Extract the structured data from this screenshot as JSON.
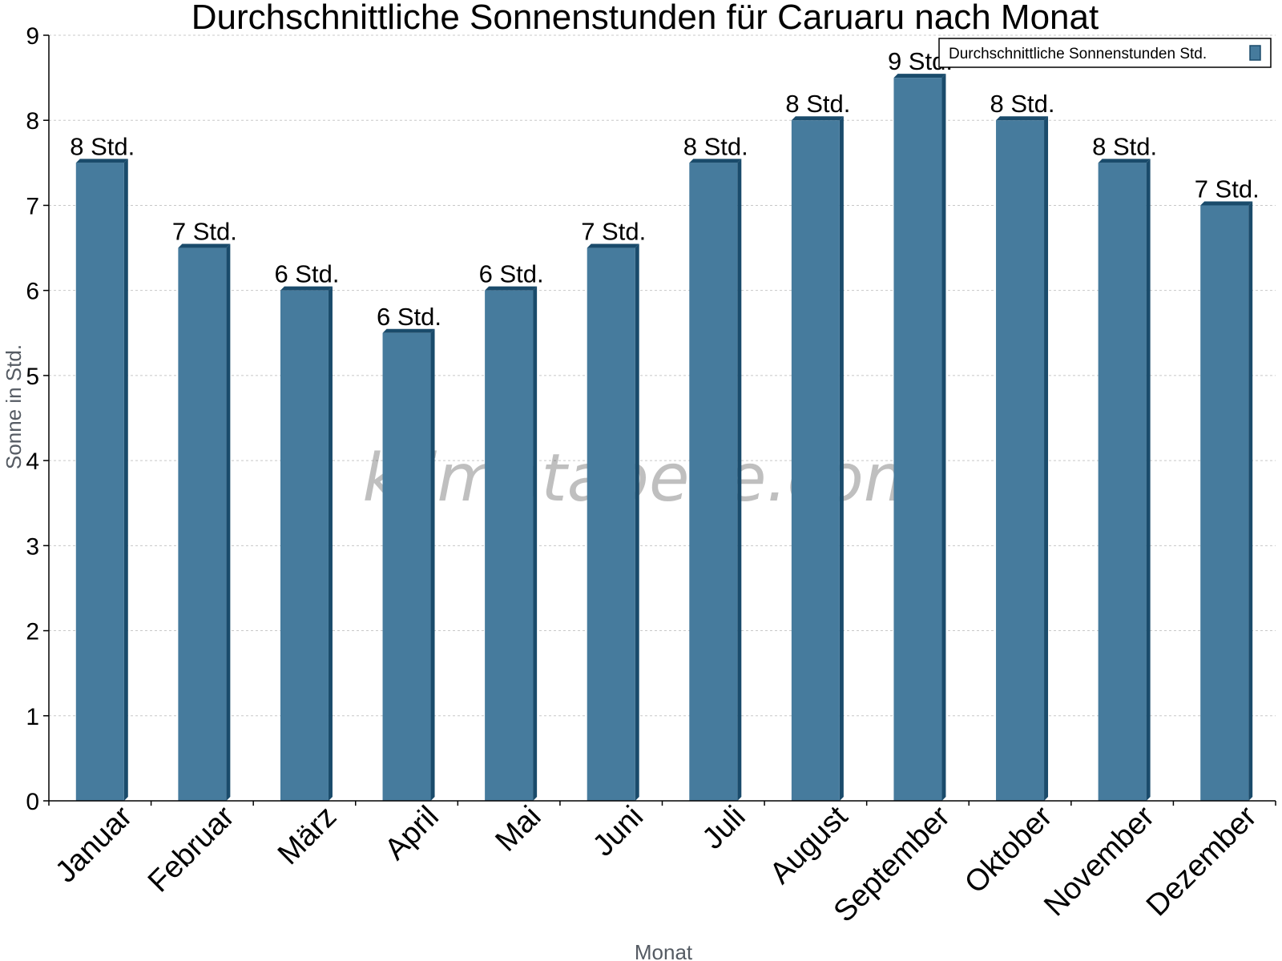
{
  "chart_data": {
    "type": "bar",
    "title": "Durchschnittliche Sonnenstunden für Caruaru nach Monat",
    "xlabel": "Monat",
    "ylabel": "Sonne in Std.",
    "categories": [
      "Januar",
      "Februar",
      "März",
      "April",
      "Mai",
      "Juni",
      "Juli",
      "August",
      "September",
      "Oktober",
      "November",
      "Dezember"
    ],
    "series": [
      {
        "name": "Durchschnittliche Sonnenstunden Std.",
        "values": [
          7.5,
          6.5,
          6.0,
          5.5,
          6.0,
          6.5,
          7.5,
          8.0,
          8.5,
          8.0,
          7.5,
          7.0
        ],
        "labels": [
          "8 Std.",
          "7 Std.",
          "6 Std.",
          "6 Std.",
          "6 Std.",
          "7 Std.",
          "8 Std.",
          "8 Std.",
          "9 Std.",
          "8 Std.",
          "8 Std.",
          "7 Std."
        ]
      }
    ],
    "ylim": [
      0,
      9
    ],
    "yticks": [
      0,
      1,
      2,
      3,
      4,
      5,
      6,
      7,
      8,
      9
    ],
    "grid": true,
    "legend_position": "top-right"
  },
  "watermark": "klimatabelle.com",
  "colors": {
    "bar_face": "#467b9d",
    "bar_edge": "#1a4b6b",
    "grid": "#c8c8c8",
    "axis": "#000000"
  }
}
